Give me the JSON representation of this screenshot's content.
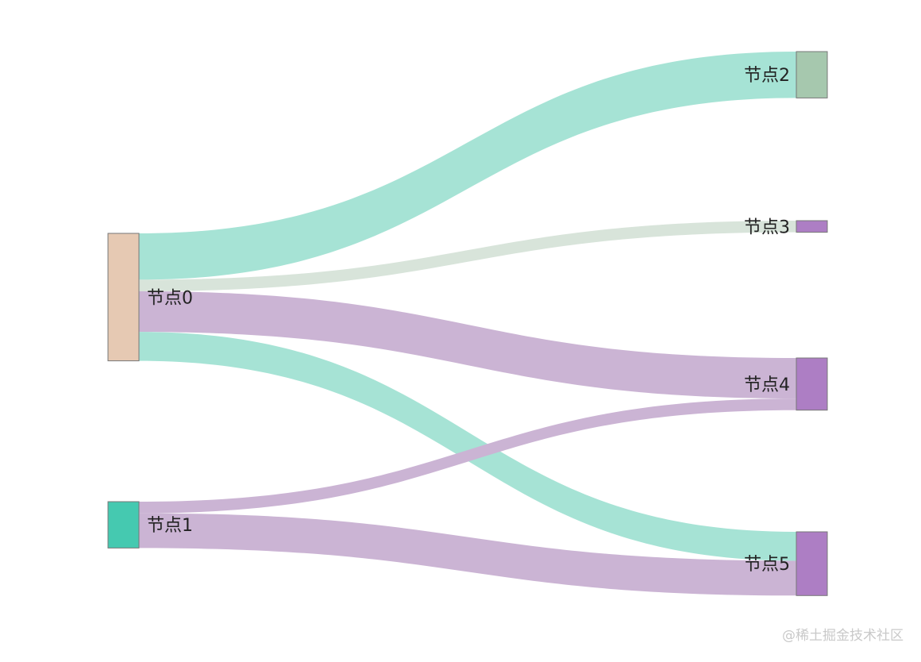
{
  "chart_data": {
    "type": "sankey",
    "nodes": [
      {
        "id": 0,
        "label": "节点0",
        "color": "#e6c9b3"
      },
      {
        "id": 1,
        "label": "节点1",
        "color": "#45c9b0"
      },
      {
        "id": 2,
        "label": "节点2",
        "color": "#a6c8ae"
      },
      {
        "id": 3,
        "label": "节点3",
        "color": "#ad7ec4"
      },
      {
        "id": 4,
        "label": "节点4",
        "color": "#ad7ec4"
      },
      {
        "id": 5,
        "label": "节点5",
        "color": "#ad7ec4"
      }
    ],
    "links": [
      {
        "source": 0,
        "target": 2,
        "value": 8,
        "color": "#a6e3d5"
      },
      {
        "source": 0,
        "target": 3,
        "value": 2,
        "color": "#d8e4da"
      },
      {
        "source": 0,
        "target": 4,
        "value": 7,
        "color": "#cbb4d4"
      },
      {
        "source": 0,
        "target": 5,
        "value": 5,
        "color": "#a6e3d5"
      },
      {
        "source": 1,
        "target": 4,
        "value": 2,
        "color": "#cbb4d4"
      },
      {
        "source": 1,
        "target": 5,
        "value": 6,
        "color": "#cbb4d4"
      }
    ]
  },
  "watermark": "@稀土掘金技术社区"
}
